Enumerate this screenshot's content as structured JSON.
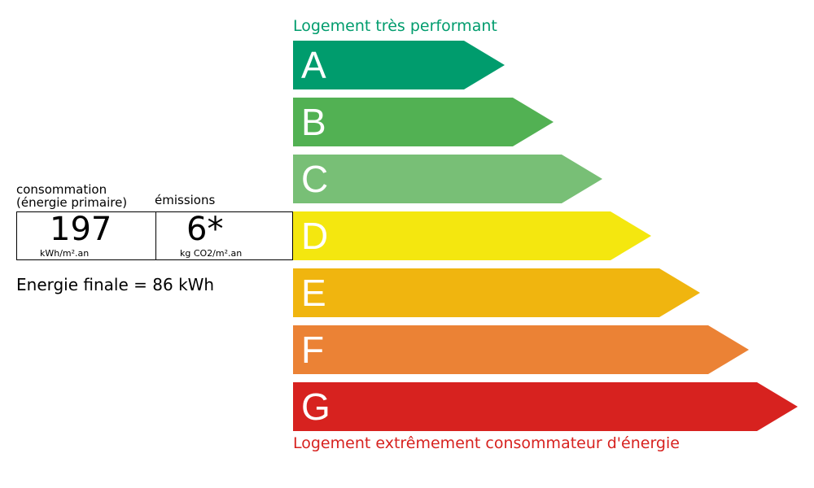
{
  "labels": {
    "top": "Logement très performant",
    "bottom": "Logement extrêmement consommateur d'énergie"
  },
  "classes": [
    {
      "letter": "A",
      "color": "#009c6d"
    },
    {
      "letter": "B",
      "color": "#52b153"
    },
    {
      "letter": "C",
      "color": "#78bf76"
    },
    {
      "letter": "D",
      "color": "#f4e70f"
    },
    {
      "letter": "E",
      "color": "#f0b50f"
    },
    {
      "letter": "F",
      "color": "#eb8235"
    },
    {
      "letter": "G",
      "color": "#d7221f"
    }
  ],
  "consumption": {
    "header_line1": "consommation",
    "header_line2": "(énergie primaire)",
    "value": "197",
    "unit": "kWh/m².an"
  },
  "emissions": {
    "header": "émissions",
    "value": "6*",
    "unit": "kg CO2/m².an"
  },
  "final_energy": "Energie finale = 86 kWh"
}
